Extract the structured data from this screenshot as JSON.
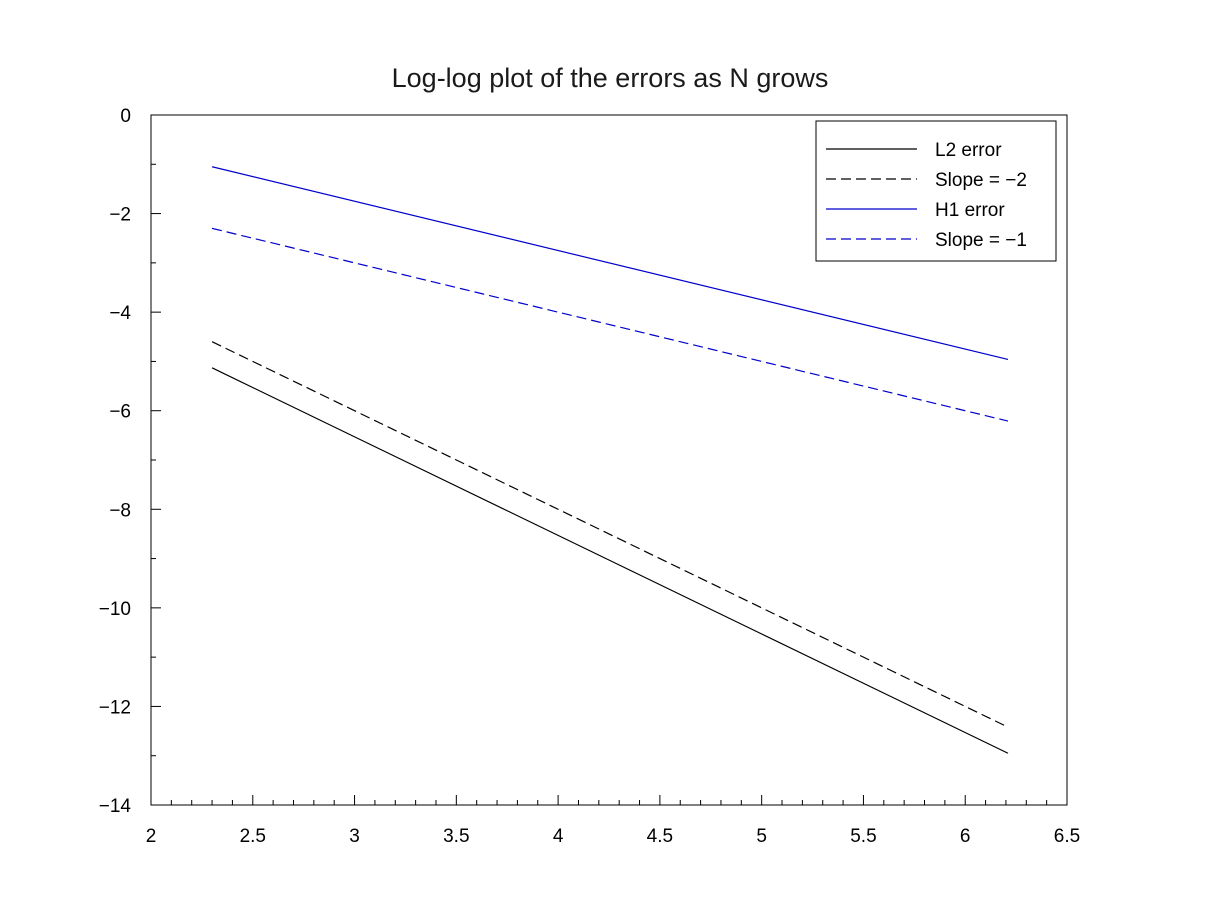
{
  "chart_data": {
    "type": "line",
    "title": "Log-log plot of the errors as N grows",
    "xlabel": "",
    "ylabel": "",
    "xlim": [
      2,
      6.5
    ],
    "ylim": [
      -14,
      0
    ],
    "xticks": [
      2,
      2.5,
      3,
      3.5,
      4,
      4.5,
      5,
      5.5,
      6,
      6.5
    ],
    "xtick_labels": [
      "2",
      "2.5",
      "3",
      "3.5",
      "4",
      "4.5",
      "5",
      "5.5",
      "6",
      "6.5"
    ],
    "yticks": [
      0,
      -2,
      -4,
      -6,
      -8,
      -10,
      -12,
      -14
    ],
    "ytick_labels": [
      "0",
      "−2",
      "−4",
      "−6",
      "−8",
      "−10",
      "−12",
      "−14"
    ],
    "grid": false,
    "legend_position": "top-right",
    "series": [
      {
        "name": "L2 error",
        "color": "#000000",
        "dash": "solid",
        "x": [
          2.3,
          6.21
        ],
        "y": [
          -5.13,
          -12.95
        ]
      },
      {
        "name": "Slope = −2",
        "color": "#000000",
        "dash": "dashed",
        "x": [
          2.3,
          6.21
        ],
        "y": [
          -4.6,
          -12.42
        ]
      },
      {
        "name": "H1 error",
        "color": "#0000cc",
        "dash": "solid",
        "x": [
          2.3,
          6.21
        ],
        "y": [
          -1.05,
          -4.96
        ]
      },
      {
        "name": "Slope = −1",
        "color": "#0000cc",
        "dash": "dashed",
        "x": [
          2.3,
          6.21
        ],
        "y": [
          -2.3,
          -6.21
        ]
      }
    ]
  }
}
